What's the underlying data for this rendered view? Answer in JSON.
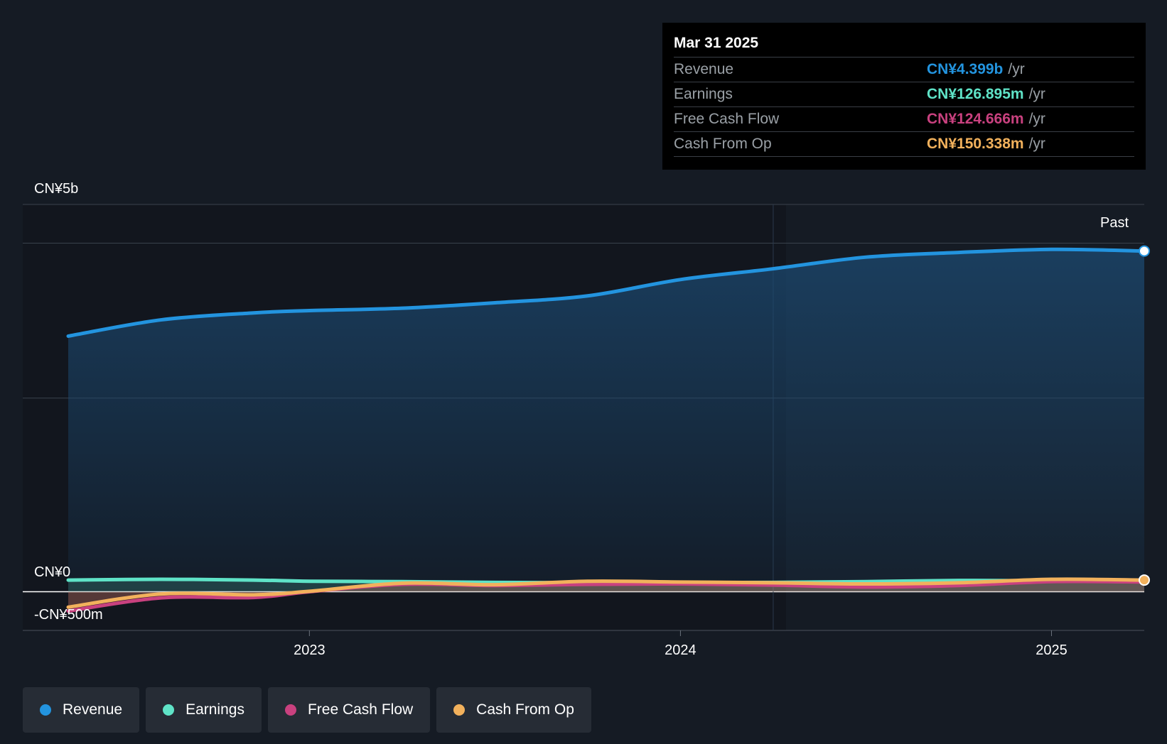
{
  "chart_data": {
    "type": "area",
    "y_axis": {
      "min": -500,
      "max": 5000,
      "unit": "CN¥m",
      "tick_labels": [
        {
          "value": 5000,
          "label": "CN¥5b"
        },
        {
          "value": 0,
          "label": "CN¥0"
        },
        {
          "value": -500,
          "label": "-CN¥500m"
        }
      ],
      "gridlines": [
        5000,
        4500,
        2500,
        0
      ]
    },
    "x_axis": {
      "min": 2022.35,
      "max": 2025.25,
      "ticks": [
        {
          "value": 2023.0,
          "label": "2023"
        },
        {
          "value": 2024.0,
          "label": "2024"
        },
        {
          "value": 2025.0,
          "label": "2025"
        }
      ]
    },
    "past_divider_x": 2024.25,
    "past_label": "Past",
    "x": [
      2022.35,
      2022.6,
      2022.85,
      2023.0,
      2023.25,
      2023.5,
      2023.75,
      2024.0,
      2024.25,
      2024.5,
      2024.75,
      2025.0,
      2025.25
    ],
    "series": [
      {
        "name": "Revenue",
        "color": "#2394df",
        "values": [
          3300,
          3510,
          3600,
          3630,
          3660,
          3730,
          3820,
          4030,
          4170,
          4320,
          4380,
          4420,
          4399
        ]
      },
      {
        "name": "Earnings",
        "color": "#5fe3c7",
        "values": [
          150,
          160,
          150,
          135,
          130,
          120,
          115,
          118,
          120,
          130,
          145,
          140,
          127
        ]
      },
      {
        "name": "Free Cash Flow",
        "color": "#c9417f",
        "values": [
          -250,
          -80,
          -75,
          0,
          95,
          80,
          95,
          100,
          85,
          60,
          80,
          130,
          125
        ]
      },
      {
        "name": "Cash From Op",
        "color": "#f2b15c",
        "values": [
          -200,
          -30,
          -40,
          5,
          110,
          90,
          135,
          125,
          115,
          100,
          115,
          160,
          150
        ]
      }
    ]
  },
  "tooltip": {
    "date": "Mar 31 2025",
    "unit_suffix": "/yr",
    "rows": [
      {
        "label": "Revenue",
        "value": "CN¥4.399b",
        "color": "#2394df"
      },
      {
        "label": "Earnings",
        "value": "CN¥126.895m",
        "color": "#5fe3c7"
      },
      {
        "label": "Free Cash Flow",
        "value": "CN¥124.666m",
        "color": "#c9417f"
      },
      {
        "label": "Cash From Op",
        "value": "CN¥150.338m",
        "color": "#f2b15c"
      }
    ]
  },
  "legend": [
    {
      "label": "Revenue",
      "color": "#2394df"
    },
    {
      "label": "Earnings",
      "color": "#5fe3c7"
    },
    {
      "label": "Free Cash Flow",
      "color": "#c9417f"
    },
    {
      "label": "Cash From Op",
      "color": "#f2b15c"
    }
  ]
}
